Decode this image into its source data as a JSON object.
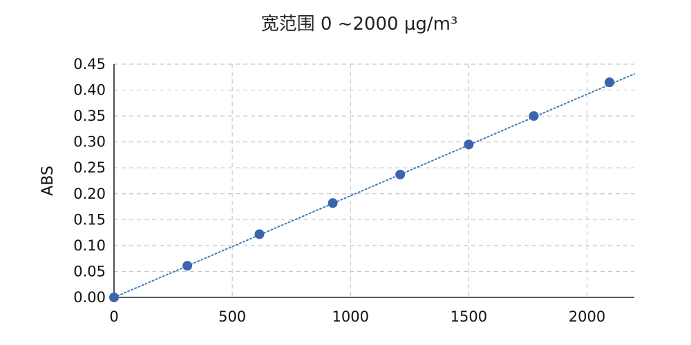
{
  "chart_data": {
    "type": "scatter",
    "title": "宽范围 0 ~2000 μg/m³",
    "xlabel": "",
    "ylabel": "ABS",
    "xlim": [
      0,
      2200
    ],
    "ylim": [
      0,
      0.45
    ],
    "x_ticks": [
      0,
      500,
      1000,
      1500,
      2000
    ],
    "y_ticks": [
      0.0,
      0.05,
      0.1,
      0.15,
      0.2,
      0.25,
      0.3,
      0.35,
      0.4,
      0.45
    ],
    "x_tick_labels": [
      "0",
      "500",
      "1000",
      "1500",
      "2000"
    ],
    "y_tick_labels": [
      "0.00",
      "0.05",
      "0.10",
      "0.15",
      "0.20",
      "0.25",
      "0.30",
      "0.35",
      "0.40",
      "0.45"
    ],
    "grid": true,
    "legend": "none",
    "series": [
      {
        "points": [
          {
            "x": 0,
            "y": 0.0
          },
          {
            "x": 310,
            "y": 0.061
          },
          {
            "x": 615,
            "y": 0.122
          },
          {
            "x": 925,
            "y": 0.182
          },
          {
            "x": 1210,
            "y": 0.237
          },
          {
            "x": 1500,
            "y": 0.295
          },
          {
            "x": 1775,
            "y": 0.35
          },
          {
            "x": 2095,
            "y": 0.415
          }
        ],
        "color": "#3a65ae"
      }
    ],
    "trendline": {
      "style": "dotted",
      "slope": 0.000196,
      "intercept": 0.0,
      "color": "#3a7ab8"
    },
    "colors": {
      "axis": "#222222",
      "grid": "#c8c8c8"
    }
  }
}
